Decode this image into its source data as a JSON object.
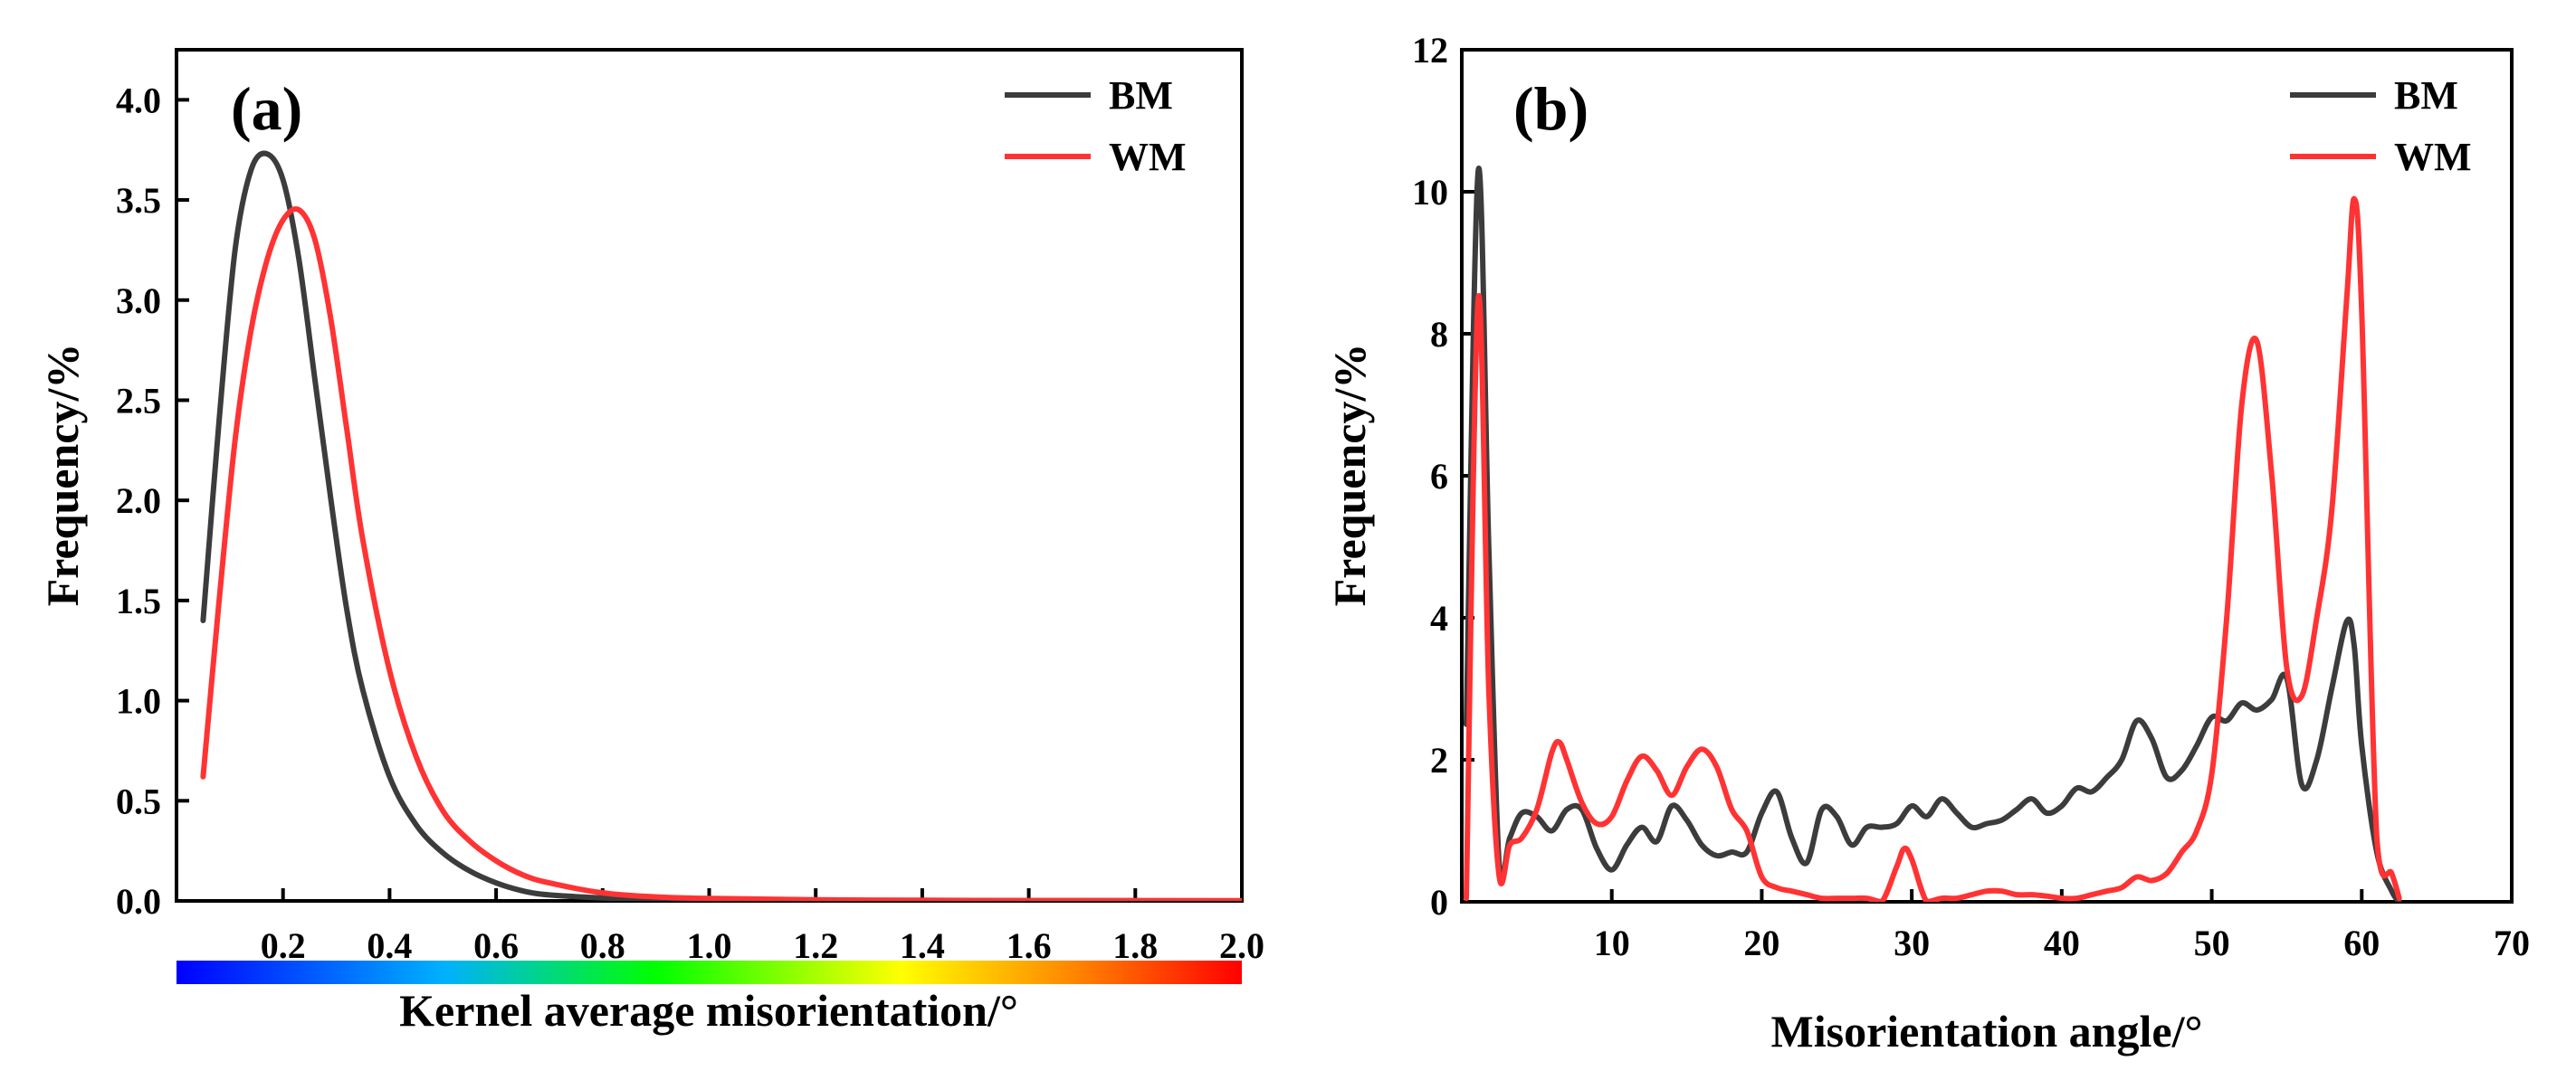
{
  "chart_data": [
    {
      "panel": "(a)",
      "type": "line",
      "xlabel": "Kernel average misorientation/°",
      "ylabel": "Frequency/%",
      "xlim": [
        0,
        2.0
      ],
      "ylim": [
        0,
        4.25
      ],
      "xticks": [
        "0.2",
        "0.4",
        "0.6",
        "0.8",
        "1.0",
        "1.2",
        "1.4",
        "1.6",
        "1.8",
        "2.0"
      ],
      "yticks": [
        "0.0",
        "0.5",
        "1.0",
        "1.5",
        "2.0",
        "2.5",
        "3.0",
        "3.5",
        "4.0"
      ],
      "colorbar": {
        "from": "0",
        "to": "2.0",
        "colors": [
          "#0000ff",
          "#00b0ff",
          "#00ff00",
          "#ffff00",
          "#ff8000",
          "#ff0000"
        ]
      },
      "legend": {
        "position": "top-right",
        "entries": [
          {
            "name": "BM",
            "color": "#3c3c3c"
          },
          {
            "name": "WM",
            "color": "#ff3333"
          }
        ]
      },
      "series": [
        {
          "name": "BM",
          "color": "#3c3c3c",
          "x": [
            0.05,
            0.08,
            0.11,
            0.14,
            0.17,
            0.2,
            0.23,
            0.26,
            0.29,
            0.32,
            0.35,
            0.4,
            0.45,
            0.5,
            0.55,
            0.6,
            0.65,
            0.7,
            0.8,
            0.9,
            1.0,
            1.2,
            1.4,
            1.6,
            1.8,
            2.0
          ],
          "y": [
            1.4,
            2.4,
            3.25,
            3.65,
            3.73,
            3.6,
            3.2,
            2.6,
            2.0,
            1.45,
            1.05,
            0.62,
            0.38,
            0.24,
            0.15,
            0.09,
            0.05,
            0.03,
            0.015,
            0.008,
            0.005,
            0.003,
            0.002,
            0.001,
            0.001,
            0.0
          ]
        },
        {
          "name": "WM",
          "color": "#ff3333",
          "x": [
            0.05,
            0.08,
            0.11,
            0.14,
            0.17,
            0.2,
            0.23,
            0.26,
            0.29,
            0.32,
            0.35,
            0.4,
            0.45,
            0.5,
            0.55,
            0.6,
            0.65,
            0.7,
            0.8,
            0.9,
            1.0,
            1.2,
            1.4,
            1.6,
            1.8,
            2.0
          ],
          "y": [
            0.62,
            1.5,
            2.3,
            2.85,
            3.2,
            3.4,
            3.45,
            3.3,
            2.9,
            2.35,
            1.8,
            1.15,
            0.72,
            0.45,
            0.3,
            0.2,
            0.13,
            0.09,
            0.04,
            0.02,
            0.012,
            0.006,
            0.003,
            0.002,
            0.001,
            0.001
          ]
        }
      ]
    },
    {
      "panel": "(b)",
      "type": "line",
      "xlabel": "Misorientation angle/°",
      "ylabel": "Frequency/%",
      "xlim": [
        0,
        70
      ],
      "ylim": [
        0,
        12
      ],
      "xticks": [
        "10",
        "20",
        "30",
        "40",
        "50",
        "60",
        "70"
      ],
      "yticks": [
        "0",
        "2",
        "4",
        "6",
        "8",
        "10",
        "12"
      ],
      "legend": {
        "position": "top-right",
        "entries": [
          {
            "name": "BM",
            "color": "#3c3c3c"
          },
          {
            "name": "WM",
            "color": "#ff3333"
          }
        ]
      },
      "series": [
        {
          "name": "BM",
          "color": "#3c3c3c",
          "x": [
            0.3,
            1.1,
            1.8,
            2.5,
            3.2,
            4.0,
            5.0,
            6.0,
            7.0,
            8.0,
            9.0,
            10.0,
            11.0,
            12.0,
            13.0,
            14.0,
            15.0,
            16.0,
            17.0,
            18.0,
            19.0,
            20.0,
            21.0,
            22.0,
            23.0,
            24.0,
            25.0,
            26.0,
            27.0,
            28.0,
            29.0,
            30.0,
            31.0,
            32.0,
            33.0,
            34.0,
            35.0,
            36.0,
            37.0,
            38.0,
            39.0,
            40.0,
            41.0,
            42.0,
            43.0,
            44.0,
            45.0,
            46.0,
            47.0,
            48.0,
            49.0,
            50.0,
            51.0,
            52.0,
            53.0,
            54.0,
            55.0,
            56.0,
            57.0,
            58.0,
            59.0,
            59.5,
            60.0,
            61.0,
            62.0,
            62.5
          ],
          "y": [
            2.5,
            10.3,
            5.0,
            0.5,
            0.9,
            1.25,
            1.2,
            1.0,
            1.3,
            1.3,
            0.75,
            0.45,
            0.8,
            1.05,
            0.85,
            1.35,
            1.15,
            0.8,
            0.65,
            0.7,
            0.7,
            1.25,
            1.55,
            0.9,
            0.55,
            1.3,
            1.2,
            0.8,
            1.05,
            1.05,
            1.1,
            1.35,
            1.2,
            1.45,
            1.25,
            1.05,
            1.1,
            1.15,
            1.3,
            1.45,
            1.25,
            1.35,
            1.6,
            1.55,
            1.75,
            2.0,
            2.55,
            2.3,
            1.75,
            1.85,
            2.2,
            2.6,
            2.55,
            2.8,
            2.7,
            2.85,
            3.15,
            1.65,
            2.0,
            3.0,
            3.95,
            3.6,
            2.2,
            0.7,
            0.15,
            0.0
          ]
        },
        {
          "name": "WM",
          "color": "#ff3333",
          "x": [
            0.3,
            1.1,
            1.8,
            2.5,
            3.2,
            4.0,
            5.0,
            6.0,
            6.5,
            7.0,
            8.0,
            9.0,
            10.0,
            11.0,
            12.0,
            13.0,
            14.0,
            15.0,
            16.0,
            17.0,
            18.0,
            19.0,
            20.0,
            21.0,
            22.0,
            23.0,
            24.0,
            25.0,
            26.0,
            27.0,
            28.0,
            29.0,
            29.5,
            30.0,
            31.0,
            32.0,
            33.0,
            34.0,
            35.0,
            36.0,
            37.0,
            38.0,
            39.0,
            40.0,
            41.0,
            42.0,
            43.0,
            44.0,
            45.0,
            46.0,
            47.0,
            48.0,
            49.0,
            50.0,
            51.0,
            52.0,
            53.0,
            54.0,
            55.0,
            56.0,
            57.0,
            58.0,
            59.0,
            59.5,
            60.0,
            61.0,
            62.0,
            62.5
          ],
          "y": [
            0.05,
            8.5,
            3.0,
            0.35,
            0.8,
            0.9,
            1.3,
            2.1,
            2.25,
            2.0,
            1.4,
            1.1,
            1.2,
            1.7,
            2.05,
            1.85,
            1.5,
            1.9,
            2.15,
            1.9,
            1.3,
            1.0,
            0.35,
            0.2,
            0.15,
            0.1,
            0.05,
            0.05,
            0.05,
            0.05,
            0.0,
            0.5,
            0.75,
            0.6,
            0.0,
            0.05,
            0.05,
            0.1,
            0.15,
            0.15,
            0.1,
            0.1,
            0.08,
            0.05,
            0.05,
            0.1,
            0.15,
            0.2,
            0.35,
            0.3,
            0.4,
            0.7,
            1.0,
            1.8,
            4.0,
            7.0,
            7.9,
            6.0,
            3.3,
            2.9,
            4.0,
            5.5,
            8.5,
            9.9,
            8.3,
            0.9,
            0.4,
            0.05
          ]
        }
      ]
    }
  ]
}
